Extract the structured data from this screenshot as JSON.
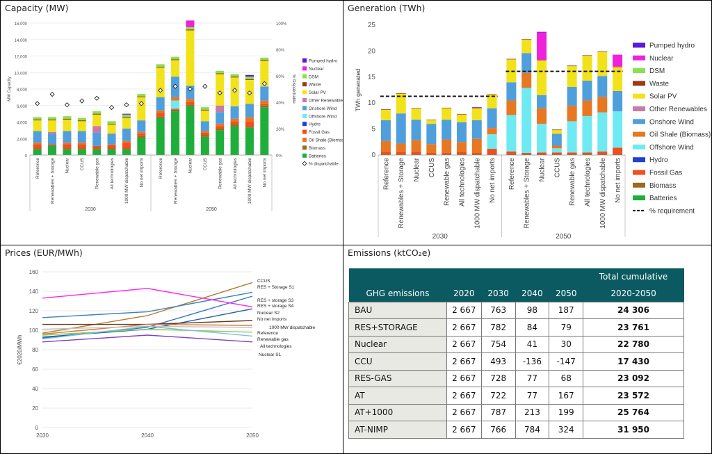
{
  "panels": {
    "capacity_title": "Capacity (MW)",
    "generation_title": "Generation (TWh)",
    "prices_title": "Prices (EUR/MWh)",
    "emissions_title": "Emissions (ktCO₂e)"
  },
  "chart_data": [
    {
      "id": "capacity",
      "type": "bar",
      "stacked": true,
      "title": "Capacity (MW)",
      "ylabel": "MW Capacity",
      "ylabel_right": "% Dispatchable",
      "ylim": [
        0,
        16000
      ],
      "yticks": [
        "0",
        "2,000",
        "4,000",
        "6,000",
        "8,000",
        "10,000",
        "12,000",
        "14,000",
        "16,000"
      ],
      "yticks_right": [
        "0%",
        "20%",
        "40%",
        "60%",
        "80%",
        "100%"
      ],
      "groups": [
        "2030",
        "2050"
      ],
      "categories": [
        "Reference",
        "Renewables + Storage",
        "Nuclear",
        "CCUS",
        "Renewable gas",
        "All technologies",
        "1000 MW dispatchable",
        "No net imports",
        "Reference",
        "Renewables + Storage",
        "Nuclear",
        "CCUS",
        "Renewable gas",
        "All technologies",
        "1000 MW dispatchable",
        "No net imports"
      ],
      "series": [
        {
          "name": "Batteries",
          "color": "#1fae3a",
          "values": [
            700,
            1100,
            700,
            700,
            700,
            700,
            700,
            2100,
            4500,
            5300,
            5900,
            2200,
            3000,
            3500,
            3300,
            5800
          ]
        },
        {
          "name": "Biomass",
          "color": "#9a6b1e",
          "values": [
            100,
            100,
            100,
            100,
            100,
            100,
            100,
            200,
            200,
            200,
            200,
            200,
            200,
            200,
            200,
            200
          ]
        },
        {
          "name": "Fossil Gas",
          "color": "#f24e1e",
          "values": [
            500,
            100,
            500,
            500,
            300,
            400,
            700,
            300,
            400,
            100,
            300,
            300,
            300,
            300,
            600,
            200
          ]
        },
        {
          "name": "Hydro",
          "color": "#1f3fd6",
          "values": [
            0,
            0,
            0,
            0,
            0,
            0,
            0,
            0,
            0,
            0,
            0,
            0,
            0,
            0,
            0,
            0
          ]
        },
        {
          "name": "Offshore Wind",
          "color": "#6feaf2",
          "values": [
            0,
            0,
            0,
            0,
            0,
            0,
            0,
            0,
            0,
            1000,
            0,
            0,
            0,
            0,
            0,
            0
          ]
        },
        {
          "name": "Oil Shale (Biomass)",
          "color": "#e87722",
          "values": [
            200,
            0,
            200,
            200,
            0,
            100,
            200,
            200,
            300,
            400,
            400,
            200,
            300,
            400,
            500,
            400
          ]
        },
        {
          "name": "Onshore Wind",
          "color": "#4f9fdc",
          "values": [
            1400,
            1300,
            1400,
            1400,
            1600,
            1300,
            1500,
            1400,
            1600,
            2500,
            1600,
            1200,
            1400,
            1500,
            1600,
            1700
          ]
        },
        {
          "name": "Other Renewables",
          "color": "#c87aa8",
          "values": [
            0,
            200,
            0,
            0,
            800,
            0,
            0,
            0,
            0,
            0,
            0,
            0,
            800,
            0,
            0,
            0
          ]
        },
        {
          "name": "Solar PV",
          "color": "#f2e21b",
          "values": [
            1300,
            1400,
            1400,
            1200,
            1400,
            1100,
            1300,
            2800,
            3600,
            2000,
            6700,
            1300,
            3800,
            3500,
            2900,
            3100
          ]
        },
        {
          "name": "Waste",
          "color": "#9c3a12",
          "values": [
            100,
            100,
            100,
            100,
            100,
            100,
            100,
            100,
            100,
            100,
            100,
            100,
            100,
            100,
            100,
            100
          ]
        },
        {
          "name": "DSM",
          "color": "#8ae04e",
          "values": [
            300,
            300,
            300,
            300,
            300,
            300,
            300,
            300,
            300,
            300,
            300,
            300,
            300,
            300,
            300,
            300
          ]
        },
        {
          "name": "Nuclear",
          "color": "#ee22dd",
          "values": [
            0,
            0,
            0,
            0,
            0,
            0,
            0,
            0,
            0,
            0,
            800,
            0,
            0,
            0,
            0,
            0
          ]
        },
        {
          "name": "Pumped hydro",
          "color": "#5a1ad8",
          "values": [
            0,
            0,
            0,
            0,
            0,
            0,
            100,
            0,
            0,
            0,
            0,
            0,
            0,
            0,
            200,
            0
          ]
        }
      ],
      "dispatchable_series": {
        "name": "% dispatchable",
        "values": [
          39,
          46,
          38,
          41,
          43,
          36,
          38,
          39,
          49,
          52,
          50,
          52,
          47,
          49,
          47,
          54
        ]
      },
      "legend": [
        "Pumped hydro",
        "Nuclear",
        "DSM",
        "Waste",
        "Solar PV",
        "Other Renewables",
        "Onshore Wind",
        "Offshore Wind",
        "Hydro",
        "Fossil Gas",
        "Oil Shale (Biomass)",
        "Biomass",
        "Batteries",
        "% dispatchable"
      ]
    },
    {
      "id": "generation",
      "type": "bar",
      "stacked": true,
      "title": "Generation (TWh)",
      "ylabel": "TWh generated",
      "ylim": [
        0,
        25
      ],
      "yticks": [
        "0",
        "5",
        "10",
        "15",
        "20",
        "25"
      ],
      "groups": [
        "2030",
        "2050"
      ],
      "categories": [
        "Reference",
        "Renewables + Storage",
        "Nuclear",
        "CCUS",
        "Renewable gas",
        "All technologies",
        "1000 MW dispatchable",
        "No net imports",
        "Reference",
        "Renewables + Storage",
        "Nuclear",
        "CCUS",
        "Renewable gas",
        "All technologies",
        "1000 MW dispatchable",
        "No net imports"
      ],
      "series": [
        {
          "name": "Batteries",
          "color": "#1fae3a",
          "values": [
            0,
            0,
            0,
            0,
            0,
            0,
            0,
            0,
            0,
            0,
            0,
            0,
            0,
            0,
            0,
            0
          ]
        },
        {
          "name": "Biomass",
          "color": "#9a6b1e",
          "values": [
            0.2,
            0.2,
            0.2,
            0.2,
            0.2,
            0.2,
            0.2,
            0.2,
            0.2,
            0.2,
            0.2,
            0.2,
            0.2,
            0.2,
            0.2,
            0.2
          ]
        },
        {
          "name": "Fossil Gas",
          "color": "#f24e1e",
          "values": [
            0.5,
            0.5,
            0.5,
            0.2,
            0.3,
            0.5,
            0.2,
            1.0,
            0.5,
            0.2,
            0.3,
            0.3,
            0.3,
            0.3,
            0.5,
            1.2
          ]
        },
        {
          "name": "Hydro",
          "color": "#1f3fd6",
          "values": [
            0,
            0,
            0,
            0,
            0,
            0,
            0,
            0,
            0,
            0,
            0,
            0,
            0,
            0,
            0,
            0
          ]
        },
        {
          "name": "Offshore Wind",
          "color": "#6feaf2",
          "values": [
            0,
            0,
            0,
            0,
            0,
            0,
            0,
            2.8,
            7.0,
            12.5,
            5.5,
            0.8,
            6.0,
            7.0,
            7.5,
            7.0
          ]
        },
        {
          "name": "Oil Shale (Biomass)",
          "color": "#e87722",
          "values": [
            2.0,
            1.5,
            2.2,
            1.7,
            2.5,
            1.8,
            2.7,
            1.2,
            2.8,
            2.9,
            3.0,
            0.5,
            3.0,
            3.0,
            3.0,
            0.0
          ]
        },
        {
          "name": "Onshore Wind",
          "color": "#4f9fdc",
          "values": [
            4.0,
            5.8,
            3.9,
            3.9,
            3.8,
            3.8,
            3.6,
            3.8,
            3.5,
            3.8,
            2.5,
            2.3,
            3.6,
            3.8,
            4.0,
            3.9
          ]
        },
        {
          "name": "Other Renewables",
          "color": "#c87aa8",
          "values": [
            0,
            0,
            0,
            0,
            0,
            0,
            0,
            0,
            0,
            0,
            0,
            0,
            0,
            0,
            0,
            0
          ]
        },
        {
          "name": "Solar PV",
          "color": "#f2e21b",
          "values": [
            2.0,
            3.8,
            2.1,
            0.7,
            2.2,
            1.5,
            2.3,
            2.6,
            4.4,
            2.6,
            6.7,
            0.7,
            4.0,
            4.8,
            4.6,
            4.6
          ]
        },
        {
          "name": "Waste",
          "color": "#9c3a12",
          "values": [
            0.1,
            0.1,
            0.1,
            0.1,
            0.1,
            0.1,
            0.1,
            0.1,
            0.1,
            0.1,
            0.1,
            0.1,
            0.1,
            0.1,
            0.1,
            0.1
          ]
        },
        {
          "name": "DSM",
          "color": "#8ae04e",
          "values": [
            0,
            0,
            0,
            0,
            0,
            0,
            0,
            0,
            0,
            0,
            0,
            0,
            0,
            0,
            0,
            0
          ]
        },
        {
          "name": "Nuclear",
          "color": "#ee22dd",
          "values": [
            0,
            0,
            0,
            0,
            0,
            0,
            0,
            0,
            0,
            0,
            5.3,
            0,
            0,
            0,
            0,
            2.3
          ]
        },
        {
          "name": "Pumped hydro",
          "color": "#5a1ad8",
          "values": [
            0,
            0,
            0,
            0,
            0,
            0,
            0.1,
            0,
            0,
            0,
            0.1,
            0,
            0,
            0,
            0,
            0
          ]
        }
      ],
      "requirement": {
        "name": "% requirement",
        "2030": 11.3,
        "2050": 16.1
      },
      "legend": [
        "Pumped hydro",
        "Nuclear",
        "DSM",
        "Waste",
        "Solar PV",
        "Other Renewables",
        "Onshore Wind",
        "Oil Shale (Biomass)*",
        "Offshore Wind",
        "Hydro",
        "Fossil Gas",
        "Biomass",
        "Batteries",
        "% requirement"
      ]
    },
    {
      "id": "prices",
      "type": "line",
      "title": "Prices (EUR/MWh)",
      "ylabel": "€2020/MWh",
      "x": [
        2030,
        2040,
        2050
      ],
      "xticks": [
        "2030",
        "2040",
        "2050"
      ],
      "ylim": [
        0,
        160
      ],
      "yticks": [
        "0",
        "20",
        "40",
        "60",
        "80",
        "100",
        "120",
        "140",
        "160"
      ],
      "series": [
        {
          "name": "CCUS",
          "color": "#b57a2a",
          "values": [
            97,
            115,
            149
          ]
        },
        {
          "name": "RES + Storage S1",
          "color": "#3d7fbf",
          "values": [
            113,
            119,
            139
          ]
        },
        {
          "name": "RES + storage S3",
          "color": "#2f77c9",
          "values": [
            92,
            103,
            135
          ]
        },
        {
          "name": "RES + storage S4",
          "color": "#ff22ee",
          "values": [
            133,
            143,
            124
          ]
        },
        {
          "name": "Nuclear S2",
          "color": "#1f5fa8",
          "values": [
            93,
            101,
            122
          ]
        },
        {
          "name": "No net imports",
          "color": "#6a3a1a",
          "values": [
            106,
            106,
            110
          ]
        },
        {
          "name": "1000 MW dispatchable",
          "color": "#d67a3a",
          "values": [
            96,
            106,
            105
          ]
        },
        {
          "name": "Reference",
          "color": "#c0c0c0",
          "values": [
            101,
            104,
            103
          ]
        },
        {
          "name": "Renewable gas",
          "color": "#8ac850",
          "values": [
            95,
            101,
            98
          ]
        },
        {
          "name": "All technologies",
          "color": "#7fbfe0",
          "values": [
            91,
            104,
            94
          ]
        },
        {
          "name": "Nuclear S1",
          "color": "#8040c0",
          "values": [
            88,
            95,
            88
          ]
        }
      ]
    },
    {
      "id": "emissions",
      "type": "table",
      "title": "Emissions (ktCO₂e)",
      "header_top": "Total cumulative",
      "headers": [
        "GHG emissions",
        "2020",
        "2030",
        "2040",
        "2050",
        "2020-2050"
      ],
      "rows": [
        [
          "BAU",
          "2 667",
          "763",
          "98",
          "187",
          "24 306"
        ],
        [
          "RES+STORAGE",
          "2 667",
          "782",
          "84",
          "79",
          "23 761"
        ],
        [
          "Nuclear",
          "2 667",
          "754",
          "41",
          "30",
          "22 780"
        ],
        [
          "CCU",
          "2 667",
          "493",
          "-136",
          "-147",
          "17 430"
        ],
        [
          "RES-GAS",
          "2 667",
          "728",
          "77",
          "68",
          "23 092"
        ],
        [
          "AT",
          "2 667",
          "722",
          "77",
          "167",
          "23 572"
        ],
        [
          "AT+1000",
          "2 667",
          "787",
          "213",
          "199",
          "25 764"
        ],
        [
          "AT-NIMP",
          "2 667",
          "766",
          "784",
          "324",
          "31 950"
        ]
      ]
    }
  ]
}
